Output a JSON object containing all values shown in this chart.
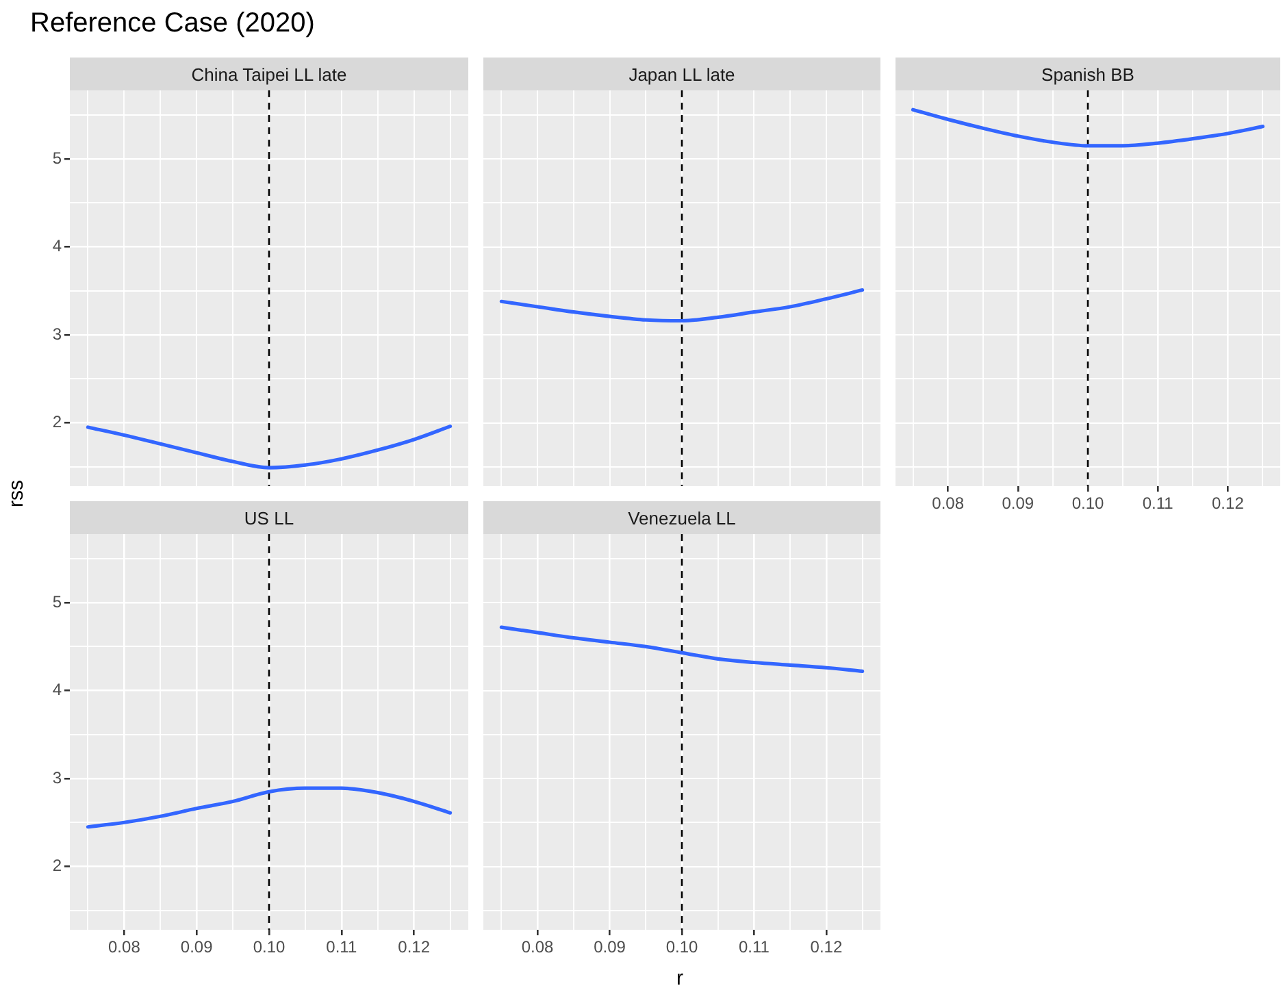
{
  "chart_data": [
    {
      "type": "line",
      "title": "China Taipei LL late",
      "annotations": [
        "Reference Case (2020)"
      ],
      "x": [
        0.075,
        0.08,
        0.085,
        0.09,
        0.095,
        0.1,
        0.105,
        0.11,
        0.115,
        0.12,
        0.125
      ],
      "series": [
        {
          "color": "#3366ff",
          "values": [
            1.95,
            1.86,
            1.76,
            1.66,
            1.56,
            1.49,
            1.52,
            1.59,
            1.69,
            1.81,
            1.96
          ]
        }
      ],
      "xlim": [
        0.0725,
        0.1275
      ],
      "ylim": [
        1.28,
        5.78
      ],
      "xticks": [
        {
          "value": 0.075,
          "label": null
        },
        {
          "value": 0.08,
          "label": null
        },
        {
          "value": 0.085,
          "label": null
        },
        {
          "value": 0.09,
          "label": null
        },
        {
          "value": 0.095,
          "label": null
        },
        {
          "value": 0.1,
          "label": null
        },
        {
          "value": 0.105,
          "label": null
        },
        {
          "value": 0.11,
          "label": null
        },
        {
          "value": 0.115,
          "label": null
        },
        {
          "value": 0.12,
          "label": null
        },
        {
          "value": 0.125,
          "label": null
        }
      ],
      "yticks": [
        {
          "value": 1.5,
          "label": null
        },
        2,
        {
          "value": 2.5,
          "label": null
        },
        3,
        {
          "value": 3.5,
          "label": null
        },
        4,
        {
          "value": 4.5,
          "label": null
        },
        5,
        {
          "value": 5.5,
          "label": null
        }
      ],
      "ref_lines": [
        {
          "axis": "x",
          "value": 0.1,
          "color": "#000000",
          "line_style": "dashed"
        }
      ],
      "grid": true,
      "marker": "none",
      "line_style": "solid",
      "tick_labels": "y"
    },
    {
      "type": "line",
      "title": "Japan LL late",
      "x": [
        0.075,
        0.08,
        0.085,
        0.09,
        0.095,
        0.1,
        0.105,
        0.11,
        0.115,
        0.12,
        0.125
      ],
      "series": [
        {
          "color": "#3366ff",
          "values": [
            3.38,
            3.32,
            3.26,
            3.21,
            3.17,
            3.16,
            3.2,
            3.26,
            3.32,
            3.41,
            3.51
          ]
        }
      ],
      "xlim": [
        0.0725,
        0.1275
      ],
      "ylim": [
        1.28,
        5.78
      ],
      "xticks": [
        {
          "value": 0.075,
          "label": null
        },
        {
          "value": 0.08,
          "label": null
        },
        {
          "value": 0.085,
          "label": null
        },
        {
          "value": 0.09,
          "label": null
        },
        {
          "value": 0.095,
          "label": null
        },
        {
          "value": 0.1,
          "label": null
        },
        {
          "value": 0.105,
          "label": null
        },
        {
          "value": 0.11,
          "label": null
        },
        {
          "value": 0.115,
          "label": null
        },
        {
          "value": 0.12,
          "label": null
        },
        {
          "value": 0.125,
          "label": null
        }
      ],
      "yticks": [
        {
          "value": 1.5,
          "label": null
        },
        {
          "value": 2,
          "label": null
        },
        {
          "value": 2.5,
          "label": null
        },
        {
          "value": 3,
          "label": null
        },
        {
          "value": 3.5,
          "label": null
        },
        {
          "value": 4,
          "label": null
        },
        {
          "value": 4.5,
          "label": null
        },
        {
          "value": 5,
          "label": null
        },
        {
          "value": 5.5,
          "label": null
        }
      ],
      "ref_lines": [
        {
          "axis": "x",
          "value": 0.1,
          "color": "#000000",
          "line_style": "dashed"
        }
      ],
      "grid": true,
      "marker": "none",
      "line_style": "solid",
      "tick_labels": false
    },
    {
      "type": "line",
      "title": "Spanish BB",
      "x": [
        0.075,
        0.08,
        0.085,
        0.09,
        0.095,
        0.1,
        0.105,
        0.11,
        0.115,
        0.12,
        0.125
      ],
      "series": [
        {
          "color": "#3366ff",
          "values": [
            5.56,
            5.45,
            5.35,
            5.26,
            5.19,
            5.15,
            5.15,
            5.18,
            5.23,
            5.29,
            5.37
          ]
        }
      ],
      "xlim": [
        0.0725,
        0.1275
      ],
      "ylim": [
        1.28,
        5.78
      ],
      "xticks": [
        {
          "value": 0.075,
          "label": null
        },
        {
          "value": 0.08,
          "label": "0.08"
        },
        {
          "value": 0.085,
          "label": null
        },
        {
          "value": 0.09,
          "label": "0.09"
        },
        {
          "value": 0.095,
          "label": null
        },
        {
          "value": 0.1,
          "label": "0.10"
        },
        {
          "value": 0.105,
          "label": null
        },
        {
          "value": 0.11,
          "label": "0.11"
        },
        {
          "value": 0.115,
          "label": null
        },
        {
          "value": 0.12,
          "label": "0.12"
        },
        {
          "value": 0.125,
          "label": null
        }
      ],
      "yticks": [
        {
          "value": 1.5,
          "label": null
        },
        {
          "value": 2,
          "label": null
        },
        {
          "value": 2.5,
          "label": null
        },
        {
          "value": 3,
          "label": null
        },
        {
          "value": 3.5,
          "label": null
        },
        {
          "value": 4,
          "label": null
        },
        {
          "value": 4.5,
          "label": null
        },
        {
          "value": 5,
          "label": null
        },
        {
          "value": 5.5,
          "label": null
        }
      ],
      "ref_lines": [
        {
          "axis": "x",
          "value": 0.1,
          "color": "#000000",
          "line_style": "dashed"
        }
      ],
      "grid": true,
      "marker": "none",
      "line_style": "solid",
      "tick_labels": "x"
    },
    {
      "type": "line",
      "title": "US LL",
      "ylabel": "rss",
      "x": [
        0.075,
        0.08,
        0.085,
        0.09,
        0.095,
        0.1,
        0.105,
        0.11,
        0.115,
        0.12,
        0.125
      ],
      "series": [
        {
          "color": "#3366ff",
          "values": [
            2.45,
            2.5,
            2.57,
            2.66,
            2.74,
            2.85,
            2.89,
            2.89,
            2.84,
            2.74,
            2.61
          ]
        }
      ],
      "xlim": [
        0.0725,
        0.1275
      ],
      "ylim": [
        1.28,
        5.78
      ],
      "xticks": [
        {
          "value": 0.075,
          "label": null
        },
        {
          "value": 0.08,
          "label": "0.08"
        },
        {
          "value": 0.085,
          "label": null
        },
        {
          "value": 0.09,
          "label": "0.09"
        },
        {
          "value": 0.095,
          "label": null
        },
        {
          "value": 0.1,
          "label": "0.10"
        },
        {
          "value": 0.105,
          "label": null
        },
        {
          "value": 0.11,
          "label": "0.11"
        },
        {
          "value": 0.115,
          "label": null
        },
        {
          "value": 0.12,
          "label": "0.12"
        },
        {
          "value": 0.125,
          "label": null
        }
      ],
      "yticks": [
        {
          "value": 1.5,
          "label": null
        },
        2,
        {
          "value": 2.5,
          "label": null
        },
        3,
        {
          "value": 3.5,
          "label": null
        },
        4,
        {
          "value": 4.5,
          "label": null
        },
        5,
        {
          "value": 5.5,
          "label": null
        }
      ],
      "ref_lines": [
        {
          "axis": "x",
          "value": 0.1,
          "color": "#000000",
          "line_style": "dashed"
        }
      ],
      "grid": true,
      "marker": "none",
      "line_style": "solid"
    },
    {
      "type": "line",
      "title": "Venezuela LL",
      "xlabel": "r",
      "x": [
        0.075,
        0.08,
        0.085,
        0.09,
        0.095,
        0.1,
        0.105,
        0.11,
        0.115,
        0.12,
        0.125
      ],
      "series": [
        {
          "color": "#3366ff",
          "values": [
            4.72,
            4.66,
            4.6,
            4.55,
            4.5,
            4.43,
            4.36,
            4.32,
            4.29,
            4.26,
            4.22
          ]
        }
      ],
      "xlim": [
        0.0725,
        0.1275
      ],
      "ylim": [
        1.28,
        5.78
      ],
      "xticks": [
        {
          "value": 0.075,
          "label": null
        },
        {
          "value": 0.08,
          "label": "0.08"
        },
        {
          "value": 0.085,
          "label": null
        },
        {
          "value": 0.09,
          "label": "0.09"
        },
        {
          "value": 0.095,
          "label": null
        },
        {
          "value": 0.1,
          "label": "0.10"
        },
        {
          "value": 0.105,
          "label": null
        },
        {
          "value": 0.11,
          "label": "0.11"
        },
        {
          "value": 0.115,
          "label": null
        },
        {
          "value": 0.12,
          "label": "0.12"
        },
        {
          "value": 0.125,
          "label": null
        }
      ],
      "yticks": [
        {
          "value": 1.5,
          "label": null
        },
        {
          "value": 2,
          "label": null
        },
        {
          "value": 2.5,
          "label": null
        },
        {
          "value": 3,
          "label": null
        },
        {
          "value": 3.5,
          "label": null
        },
        {
          "value": 4,
          "label": null
        },
        {
          "value": 4.5,
          "label": null
        },
        {
          "value": 5,
          "label": null
        },
        {
          "value": 5.5,
          "label": null
        }
      ],
      "ref_lines": [
        {
          "axis": "x",
          "value": 0.1,
          "color": "#000000",
          "line_style": "dashed"
        }
      ],
      "grid": true,
      "marker": "none",
      "line_style": "solid",
      "tick_labels": "x"
    }
  ]
}
